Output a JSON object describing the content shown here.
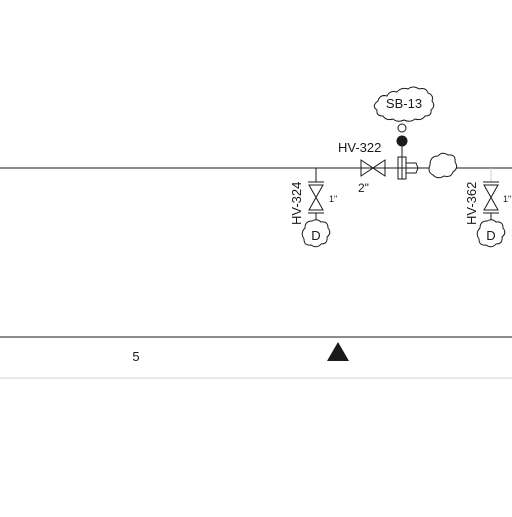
{
  "labels": {
    "sb_tag": "SB-13",
    "hv_main": "HV-322",
    "hv_main_size": "2\"",
    "hv_left": "HV-324",
    "hv_right": "HV-362",
    "drain_left": "D",
    "drain_right": "D",
    "zone_number": "5"
  },
  "colors": {
    "line": "#1a1a1a",
    "thin_line": "#cfcfcf",
    "background": "#ffffff"
  },
  "icons": {
    "north_marker": "filled-triangle-icon",
    "instrument_tap": "filled-circle-icon"
  }
}
